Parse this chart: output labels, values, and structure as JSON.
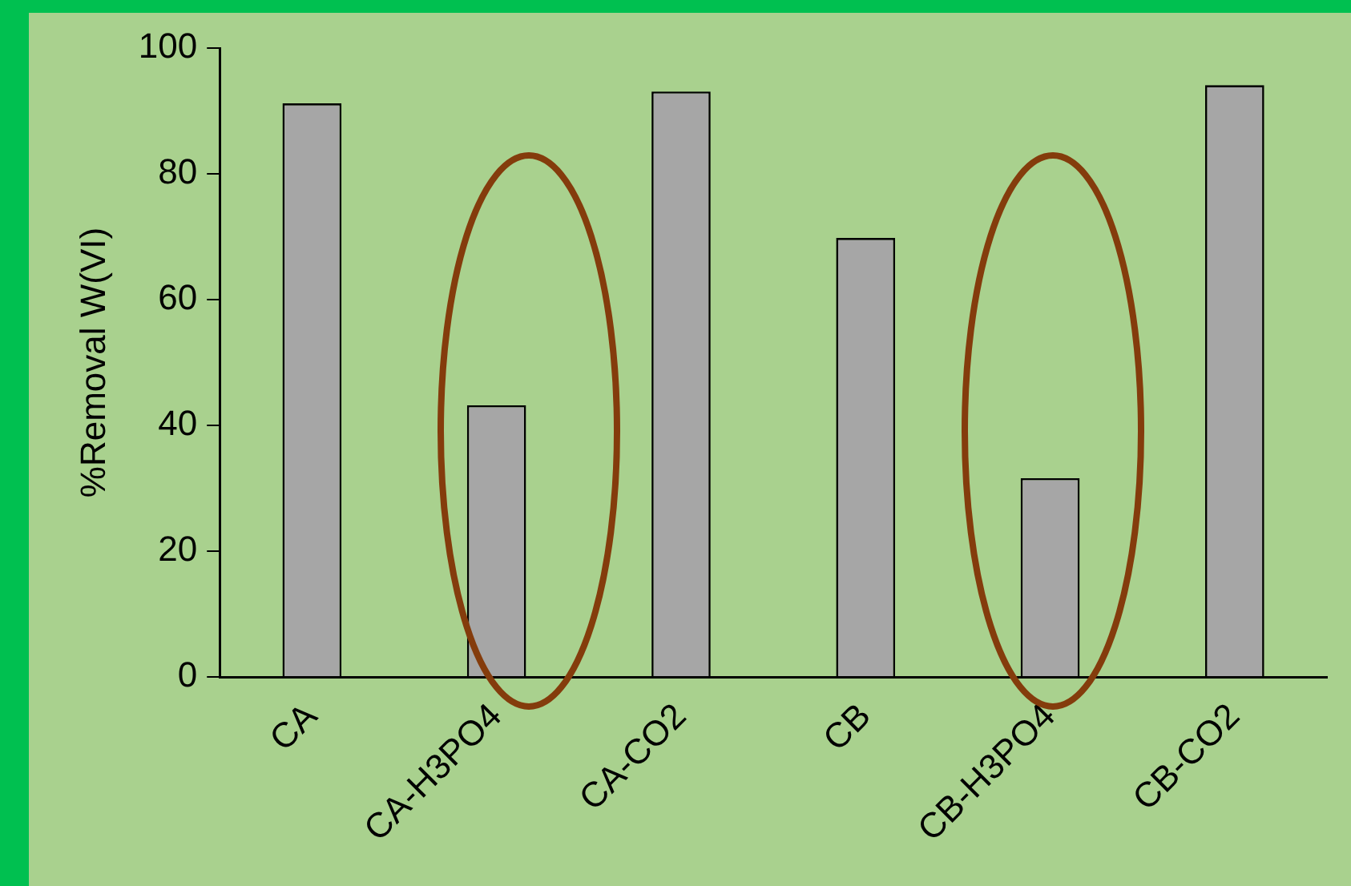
{
  "chart_data": {
    "type": "bar",
    "ylabel": "%Removal W(VI)",
    "categories": [
      "CA",
      "CA-H3PO4",
      "CA-CO2",
      "CB",
      "CB-H3PO4",
      "CB-CO2"
    ],
    "values": [
      91.2,
      43.2,
      93.1,
      69.8,
      31.6,
      94.1
    ],
    "color": "#a6a6a6",
    "ylim": [
      0,
      100
    ],
    "yticks": [
      0,
      20,
      40,
      60,
      80,
      100
    ],
    "grid": false,
    "legend": false
  }
}
